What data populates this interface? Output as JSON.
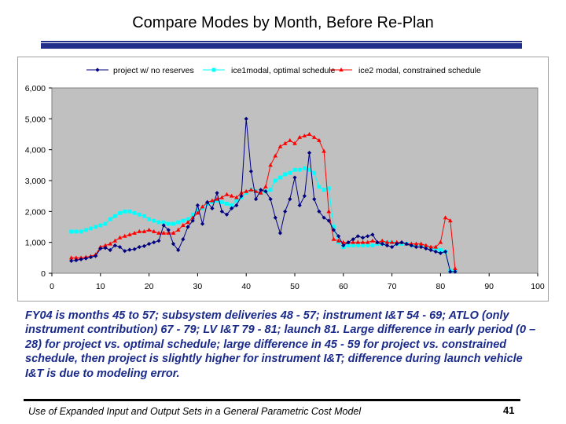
{
  "slide": {
    "title": "Compare Modes by Month, Before Re-Plan",
    "caption": "FY04 is months 45 to 57; subsystem deliveries 48 - 57; instrument I&T 54 - 69; ATLO (only instrument contribution) 67 - 79; LV I&T 79 - 81; launch 81. Large difference in early period (0 – 28) for project vs. optimal schedule; large difference in 45 - 59 for project vs. constrained schedule, then project is slightly higher for instrument I&T; difference during launch vehicle I&T is due to modeling error.",
    "footer": "Use of Expanded Input and Output Sets in a General Parametric Cost Model",
    "page_number": "41"
  },
  "colors": {
    "plot_bg": "#c0c0c0",
    "series1": "#000080",
    "series2": "#00ffff",
    "series3": "#ff0000",
    "title_bar": "#1f2f8a",
    "caption": "#1a2a8a"
  },
  "chart_data": {
    "type": "line",
    "title": "",
    "xlabel": "",
    "ylabel": "",
    "xlim": [
      0,
      100
    ],
    "ylim": [
      0,
      6000
    ],
    "xticks": [
      0,
      10,
      20,
      30,
      40,
      50,
      60,
      70,
      80,
      90,
      100
    ],
    "yticks": [
      0,
      1000,
      2000,
      3000,
      4000,
      5000,
      6000
    ],
    "xtick_labels": [
      "0",
      "10",
      "20",
      "30",
      "40",
      "50",
      "60",
      "70",
      "80",
      "90",
      "100"
    ],
    "ytick_labels": [
      "0",
      "1,000",
      "2,000",
      "3,000",
      "4,000",
      "5,000",
      "6,000"
    ],
    "legend_position": "top",
    "grid": false,
    "series": [
      {
        "name": "project w/ no reserves",
        "marker": "diamond",
        "x": [
          4,
          5,
          6,
          7,
          8,
          9,
          10,
          11,
          12,
          13,
          14,
          15,
          16,
          17,
          18,
          19,
          20,
          21,
          22,
          23,
          24,
          25,
          26,
          27,
          28,
          29,
          30,
          31,
          32,
          33,
          34,
          35,
          36,
          37,
          38,
          39,
          40,
          41,
          42,
          43,
          44,
          45,
          46,
          47,
          48,
          49,
          50,
          51,
          52,
          53,
          54,
          55,
          56,
          57,
          58,
          59,
          60,
          61,
          62,
          63,
          64,
          65,
          66,
          67,
          68,
          69,
          70,
          71,
          72,
          73,
          74,
          75,
          76,
          77,
          78,
          79,
          80,
          81,
          82,
          83
        ],
        "y": [
          400,
          420,
          450,
          480,
          520,
          560,
          800,
          820,
          750,
          900,
          850,
          720,
          760,
          780,
          850,
          880,
          950,
          1000,
          1050,
          1550,
          1400,
          950,
          750,
          1100,
          1500,
          1700,
          2200,
          1600,
          2300,
          2100,
          2600,
          2000,
          1900,
          2100,
          2200,
          2500,
          5000,
          3300,
          2400,
          2700,
          2650,
          2400,
          1800,
          1300,
          2000,
          2400,
          3100,
          2200,
          2500,
          3900,
          2400,
          2000,
          1800,
          1700,
          1400,
          1200,
          900,
          1000,
          1100,
          1200,
          1150,
          1200,
          1250,
          1000,
          950,
          900,
          850,
          950,
          1000,
          950,
          900,
          850,
          850,
          800,
          750,
          700,
          650,
          700,
          50,
          50
        ]
      },
      {
        "name": "ice1modal, optimal schedule",
        "marker": "square",
        "x": [
          4,
          5,
          6,
          7,
          8,
          9,
          10,
          11,
          12,
          13,
          14,
          15,
          16,
          17,
          18,
          19,
          20,
          21,
          22,
          23,
          24,
          25,
          26,
          27,
          28,
          29,
          30,
          31,
          32,
          33,
          34,
          35,
          36,
          37,
          38,
          39,
          40,
          41,
          42,
          43,
          44,
          45,
          46,
          47,
          48,
          49,
          50,
          51,
          52,
          53,
          54,
          55,
          56,
          57,
          58,
          59,
          60,
          61,
          62,
          63,
          64,
          65,
          66,
          67,
          68,
          69,
          70,
          71,
          72,
          73,
          74,
          75,
          76,
          77,
          78,
          79,
          80,
          81,
          82,
          83
        ],
        "y": [
          1350,
          1350,
          1350,
          1400,
          1450,
          1500,
          1550,
          1600,
          1750,
          1850,
          1950,
          2000,
          2000,
          1950,
          1900,
          1850,
          1750,
          1700,
          1650,
          1650,
          1600,
          1600,
          1650,
          1700,
          1750,
          1900,
          2050,
          2100,
          2250,
          2300,
          2350,
          2300,
          2250,
          2200,
          2350,
          2450,
          2600,
          2700,
          2650,
          2600,
          2650,
          2700,
          3000,
          3100,
          3200,
          3250,
          3350,
          3350,
          3400,
          3350,
          3250,
          2800,
          2700,
          2750,
          1500,
          1000,
          850,
          900,
          900,
          900,
          900,
          900,
          900,
          950,
          950,
          1000,
          1000,
          950,
          950,
          950,
          900,
          900,
          900,
          850,
          800,
          800,
          750,
          700,
          80,
          80
        ]
      },
      {
        "name": "ice2 modal, constrained schedule",
        "marker": "triangle",
        "x": [
          4,
          5,
          6,
          7,
          8,
          9,
          10,
          11,
          12,
          13,
          14,
          15,
          16,
          17,
          18,
          19,
          20,
          21,
          22,
          23,
          24,
          25,
          26,
          27,
          28,
          29,
          30,
          31,
          32,
          33,
          34,
          35,
          36,
          37,
          38,
          39,
          40,
          41,
          42,
          43,
          44,
          45,
          46,
          47,
          48,
          49,
          50,
          51,
          52,
          53,
          54,
          55,
          56,
          57,
          58,
          59,
          60,
          61,
          62,
          63,
          64,
          65,
          66,
          67,
          68,
          69,
          70,
          71,
          72,
          73,
          74,
          75,
          76,
          77,
          78,
          79,
          80,
          81,
          82,
          83
        ],
        "y": [
          500,
          500,
          500,
          520,
          550,
          600,
          850,
          900,
          950,
          1050,
          1150,
          1200,
          1250,
          1300,
          1350,
          1350,
          1400,
          1350,
          1300,
          1300,
          1300,
          1300,
          1400,
          1550,
          1650,
          1800,
          1950,
          2150,
          2300,
          2350,
          2400,
          2450,
          2550,
          2500,
          2450,
          2600,
          2650,
          2700,
          2650,
          2600,
          2800,
          3500,
          3800,
          4100,
          4200,
          4300,
          4200,
          4400,
          4450,
          4500,
          4400,
          4300,
          3950,
          2000,
          1100,
          1050,
          1000,
          1000,
          1000,
          1000,
          1000,
          1000,
          1050,
          1000,
          1050,
          1000,
          1000,
          1000,
          1000,
          950,
          950,
          950,
          950,
          900,
          850,
          850,
          1000,
          1800,
          1700,
          150
        ]
      }
    ]
  }
}
